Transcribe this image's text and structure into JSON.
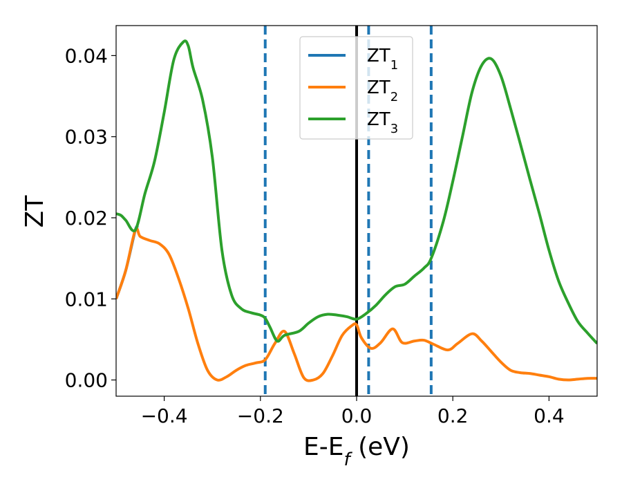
{
  "chart_data": {
    "type": "line",
    "xlabel": "E-E",
    "xlabel_sub": "f",
    "xlabel_unit": " (eV)",
    "ylabel": "ZT",
    "xlim": [
      -0.5,
      0.5
    ],
    "ylim": [
      -0.002,
      0.0437
    ],
    "xticks": [
      -0.4,
      -0.2,
      0.0,
      0.2,
      0.4
    ],
    "xtick_labels": [
      "−0.4",
      "−0.2",
      "0.0",
      "0.2",
      "0.4"
    ],
    "yticks": [
      0.0,
      0.01,
      0.02,
      0.03,
      0.04
    ],
    "ytick_labels": [
      "0.00",
      "0.01",
      "0.02",
      "0.03",
      "0.04"
    ],
    "grid": false,
    "legend_position": "top-center",
    "vertical_lines": [
      {
        "x": 0.0,
        "style": "solid",
        "color": "#000000"
      },
      {
        "x": -0.19,
        "style": "dashed",
        "color": "#1f77b4"
      },
      {
        "x": 0.025,
        "style": "dashed",
        "color": "#1f77b4"
      },
      {
        "x": 0.155,
        "style": "dashed",
        "color": "#1f77b4"
      }
    ],
    "series": [
      {
        "name": "ZT",
        "name_sub": "1",
        "color": "#1f77b4",
        "x": [
          -0.5,
          -0.48,
          -0.46,
          -0.455
        ],
        "y": [
          0.01,
          0.0135,
          0.0185,
          0.0187
        ]
      },
      {
        "name": "ZT",
        "name_sub": "2",
        "color": "#ff7f0e",
        "x": [
          -0.5,
          -0.48,
          -0.46,
          -0.45,
          -0.43,
          -0.41,
          -0.39,
          -0.37,
          -0.35,
          -0.33,
          -0.31,
          -0.29,
          -0.27,
          -0.25,
          -0.23,
          -0.21,
          -0.19,
          -0.17,
          -0.15,
          -0.13,
          -0.11,
          -0.09,
          -0.07,
          -0.05,
          -0.03,
          -0.01,
          0.0,
          0.01,
          0.03,
          0.05,
          0.075,
          0.095,
          0.12,
          0.14,
          0.16,
          0.19,
          0.21,
          0.24,
          0.26,
          0.28,
          0.3,
          0.32,
          0.34,
          0.36,
          0.38,
          0.4,
          0.42,
          0.44,
          0.46,
          0.48,
          0.5
        ],
        "y": [
          0.01,
          0.0135,
          0.0185,
          0.0177,
          0.0172,
          0.0168,
          0.0155,
          0.0125,
          0.0088,
          0.0045,
          0.0012,
          0.0,
          0.0004,
          0.0012,
          0.0018,
          0.0021,
          0.0025,
          0.0045,
          0.006,
          0.0033,
          0.0003,
          0.0,
          0.0008,
          0.003,
          0.0055,
          0.0067,
          0.0068,
          0.0052,
          0.0039,
          0.0046,
          0.0063,
          0.0046,
          0.0048,
          0.0049,
          0.0044,
          0.0037,
          0.0045,
          0.0057,
          0.0048,
          0.0035,
          0.0022,
          0.0012,
          0.0009,
          0.0008,
          0.0006,
          0.0004,
          0.0001,
          0.0,
          0.0001,
          0.0002,
          0.0002
        ]
      },
      {
        "name": "ZT",
        "name_sub": "3",
        "color": "#2ca02c",
        "x": [
          -0.5,
          -0.49,
          -0.48,
          -0.46,
          -0.44,
          -0.42,
          -0.4,
          -0.38,
          -0.36,
          -0.35,
          -0.34,
          -0.32,
          -0.3,
          -0.28,
          -0.26,
          -0.24,
          -0.22,
          -0.2,
          -0.19,
          -0.18,
          -0.165,
          -0.15,
          -0.12,
          -0.1,
          -0.08,
          -0.06,
          -0.04,
          -0.02,
          0.0,
          0.02,
          0.04,
          0.06,
          0.08,
          0.1,
          0.12,
          0.14,
          0.155,
          0.18,
          0.2,
          0.22,
          0.24,
          0.26,
          0.28,
          0.3,
          0.32,
          0.34,
          0.36,
          0.38,
          0.4,
          0.42,
          0.44,
          0.46,
          0.48,
          0.5
        ],
        "y": [
          0.0205,
          0.0203,
          0.0197,
          0.0185,
          0.023,
          0.027,
          0.033,
          0.0395,
          0.0417,
          0.0412,
          0.0385,
          0.0345,
          0.0275,
          0.016,
          0.0105,
          0.0088,
          0.0083,
          0.008,
          0.0076,
          0.0065,
          0.0048,
          0.0055,
          0.006,
          0.007,
          0.0078,
          0.0081,
          0.008,
          0.0078,
          0.0075,
          0.0082,
          0.0092,
          0.0105,
          0.0115,
          0.0118,
          0.0128,
          0.0138,
          0.015,
          0.0195,
          0.0245,
          0.03,
          0.0355,
          0.0388,
          0.0396,
          0.0375,
          0.0335,
          0.0292,
          0.0248,
          0.0205,
          0.016,
          0.0122,
          0.0095,
          0.0072,
          0.0058,
          0.0045
        ]
      }
    ]
  }
}
